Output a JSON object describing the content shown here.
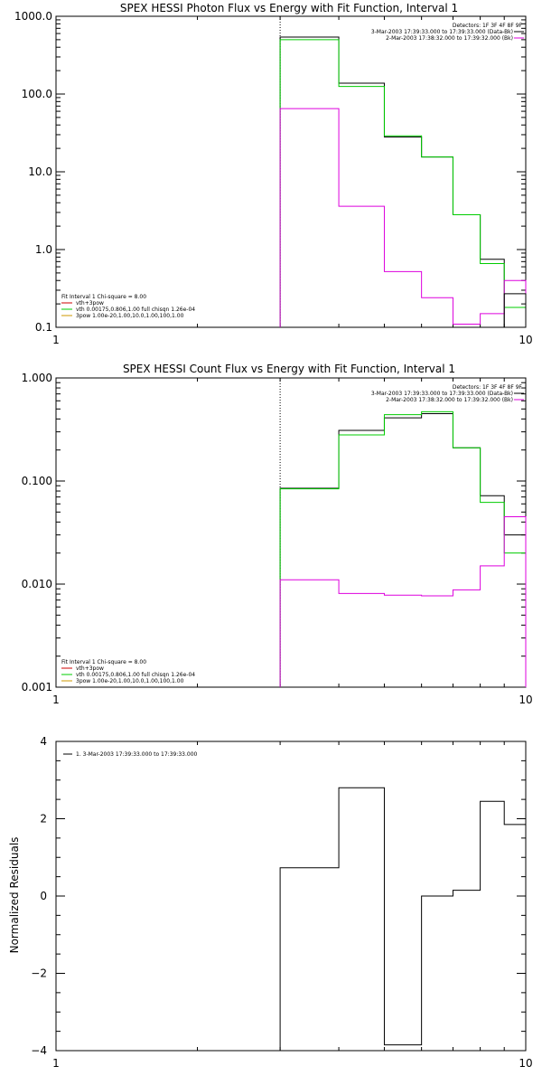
{
  "chart_data": [
    {
      "type": "line",
      "title": "SPEX HESSI Photon Flux vs Energy with Fit Function, Interval 1",
      "xlabel": "",
      "ylabel": "",
      "xscale": "log",
      "yscale": "log",
      "xlim": [
        1,
        10
      ],
      "ylim": [
        0.1,
        1000
      ],
      "xticks": [
        "1",
        "10"
      ],
      "yticks": [
        "0.1",
        "1.0",
        "10.0",
        "100.0",
        "1000.0"
      ],
      "vline": 3,
      "header": {
        "detectors": "Detectors: 1F 3F 4F 8F 9F",
        "data": "3-Mar-2003 17:39:33.000 to 17:39:33.000 (Data-Bk)",
        "background": "2-Mar-2003 17:38:32.000 to 17:39:32.000 (Bk)"
      },
      "fit": {
        "header": "Fit Interval 1    Chi-square = 8.00",
        "lines": [
          {
            "label": "vth+3pow",
            "color": "#cc0000"
          },
          {
            "label": "vth 0.00175,0.806,1.00  full chisqn 1.26e-04",
            "color": "#00cc00"
          },
          {
            "label": "3pow 1.00e-20,1.00,10.0,1.00,100,1.00",
            "color": "#cc9900"
          }
        ]
      },
      "series": [
        {
          "color": "#000000",
          "edges": [
            3,
            4,
            5,
            6,
            7,
            8,
            9
          ],
          "values": [
            540,
            138,
            28,
            15.5,
            2.8,
            0.75
          ]
        },
        {
          "color": "#00cc00",
          "edges": [
            3,
            4,
            5,
            6,
            7,
            8,
            9,
            10
          ],
          "values": [
            500,
            125,
            29,
            15.5,
            2.8,
            0.66,
            0.18
          ]
        },
        {
          "color": "#dd00dd",
          "edges": [
            3,
            4,
            5,
            6,
            7,
            8,
            9,
            10
          ],
          "values": [
            65,
            3.6,
            0.52,
            0.24,
            0.11,
            0.15,
            0.4
          ]
        },
        {
          "color": "#000000",
          "edges": [
            9,
            10
          ],
          "values": [
            0.27
          ]
        }
      ]
    },
    {
      "type": "line",
      "title": "SPEX HESSI Count Flux vs Energy with Fit Function, Interval 1",
      "xlabel": "",
      "ylabel": "",
      "xscale": "log",
      "yscale": "log",
      "xlim": [
        1,
        10
      ],
      "ylim": [
        0.001,
        1
      ],
      "xticks": [
        "1",
        "10"
      ],
      "yticks": [
        "0.001",
        "0.010",
        "0.100",
        "1.000"
      ],
      "vline": 3,
      "header": {
        "detectors": "Detectors: 1F 3F 4F 8F 9F",
        "data": "3-Mar-2003 17:39:33.000 to 17:39:33.000 (Data-Bk)",
        "background": "2-Mar-2003 17:38:32.000 to 17:39:32.000 (Bk)"
      },
      "fit": {
        "header": "Fit Interval 1    Chi-square = 8.00",
        "lines": [
          {
            "label": "vth+3pow",
            "color": "#cc0000"
          },
          {
            "label": "vth 0.00175,0.806,1.00  full chisqn 1.26e-04",
            "color": "#00cc00"
          },
          {
            "label": "3pow 1.00e-20,1.00,10.0,1.00,100,1.00",
            "color": "#cc9900"
          }
        ]
      },
      "series": [
        {
          "color": "#000000",
          "edges": [
            3,
            4,
            5,
            6,
            7,
            8,
            9,
            10
          ],
          "values": [
            0.085,
            0.31,
            0.41,
            0.45,
            0.21,
            0.072,
            0.03
          ]
        },
        {
          "color": "#00cc00",
          "edges": [
            3,
            4,
            5,
            6,
            7,
            8,
            9,
            10
          ],
          "values": [
            0.084,
            0.28,
            0.44,
            0.47,
            0.21,
            0.062,
            0.02
          ]
        },
        {
          "color": "#dd00dd",
          "edges": [
            3,
            4,
            5,
            6,
            7,
            8,
            9,
            10
          ],
          "values": [
            0.011,
            0.0081,
            0.0078,
            0.0077,
            0.0088,
            0.015,
            0.045
          ]
        }
      ]
    },
    {
      "type": "line",
      "title": "",
      "xlabel": "",
      "ylabel": "Normalized Residuals",
      "xscale": "log",
      "yscale": "linear",
      "xlim": [
        1,
        10
      ],
      "ylim": [
        -4,
        4
      ],
      "xticks": [
        "1",
        "10"
      ],
      "yticks": [
        "−4",
        "−2",
        "0",
        "2",
        "4"
      ],
      "legend": "1.  3-Mar-2003 17:39:33.000 to 17:39:33.000",
      "series": [
        {
          "color": "#000000",
          "edges": [
            3,
            4,
            5,
            6,
            7,
            8,
            9,
            10
          ],
          "values": [
            0.73,
            2.8,
            -3.85,
            0.0,
            0.15,
            2.45,
            1.85
          ]
        }
      ]
    }
  ]
}
